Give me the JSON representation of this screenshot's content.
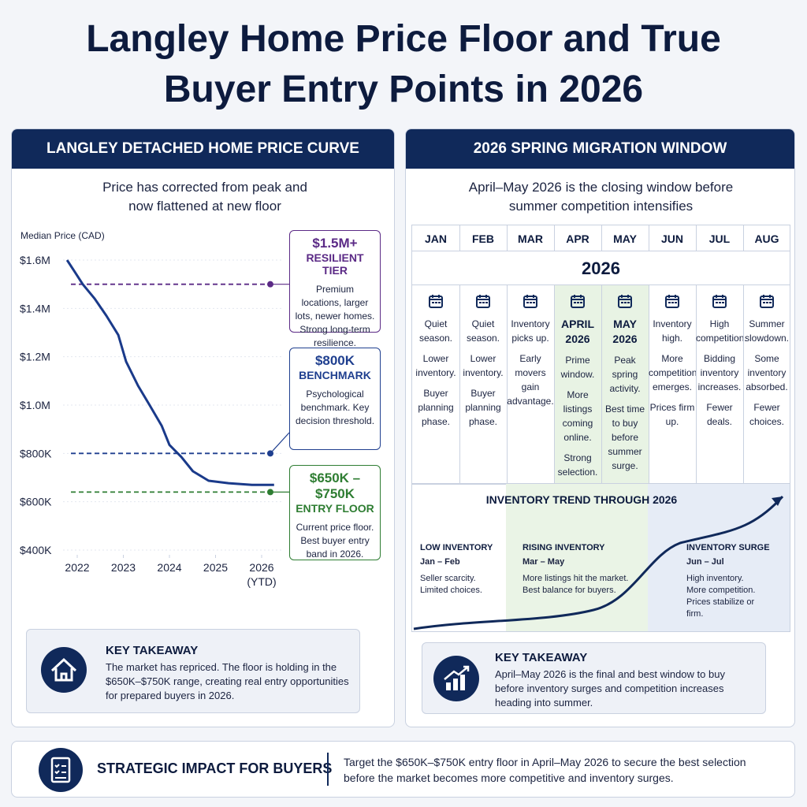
{
  "title": "Langley Home Price Floor and True Buyer Entry Points in 2026",
  "left_panel": {
    "header": "LANGLEY DETACHED HOME PRICE CURVE",
    "subtitle": "Price has corrected from peak and now flattened at new floor",
    "takeaway": {
      "heading": "KEY TAKEAWAY",
      "text": "The market has repriced. The floor is holding in the $650K–$750K range, creating real entry opportunities for prepared buyers in 2026."
    }
  },
  "chart_data": {
    "type": "line",
    "y_label": "Median Price (CAD)",
    "color": "#1a3a8a",
    "grid": true,
    "x": [
      2021.78,
      2021.95,
      2022.12,
      2022.38,
      2022.63,
      2022.89,
      2023.06,
      2023.32,
      2023.57,
      2023.83,
      2024.0,
      2024.26,
      2024.51,
      2024.85,
      2025.28,
      2025.79,
      2026.27
    ],
    "values": [
      1600000,
      1550000,
      1500000,
      1440000,
      1370000,
      1290000,
      1180000,
      1080000,
      1000000,
      915000,
      835000,
      785000,
      726000,
      687000,
      677000,
      670000,
      670000
    ],
    "xlim": [
      2021.6,
      2026.4
    ],
    "xticks": [
      2022,
      2023,
      2024,
      2025,
      {
        "value": 2026,
        "label": "2026 (YTD)"
      }
    ],
    "ylim": [
      400000,
      1600000
    ],
    "yticks": [
      {
        "value": 400000,
        "label": "$400K"
      },
      {
        "value": 600000,
        "label": "$600K"
      },
      {
        "value": 800000,
        "label": "$800K"
      },
      {
        "value": 1000000,
        "label": "$1.0M"
      },
      {
        "value": 1200000,
        "label": "$1.2M"
      },
      {
        "value": 1400000,
        "label": "$1.4M"
      },
      {
        "value": 1600000,
        "label": "$1.6M"
      }
    ],
    "reference_lines": [
      {
        "value": 1500000,
        "color": "#5b2a86",
        "heading": "$1.5M+",
        "subheading": "RESILIENT TIER",
        "text": "Premium locations, larger lots, newer homes. Strong long-term resilience."
      },
      {
        "value": 800000,
        "color": "#1f3f8f",
        "heading": "$800K",
        "subheading": "BENCHMARK",
        "text": "Psychological benchmark. Key decision threshold."
      },
      {
        "value": 640000,
        "color": "#2e7d32",
        "heading": "$650K – $750K",
        "subheading": "ENTRY FLOOR",
        "text": "Current price floor. Best buyer entry band in 2026."
      }
    ]
  },
  "right_panel": {
    "header": "2026 SPRING MIGRATION WINDOW",
    "subtitle": "April–May 2026 is the closing window before summer competition intensifies",
    "year": "2026",
    "months": [
      {
        "month": "JAN",
        "notes": [
          "Quiet season.",
          "Lower inventory.",
          "Buyer planning phase."
        ]
      },
      {
        "month": "FEB",
        "notes": [
          "Quiet season.",
          "Lower inventory.",
          "Buyer planning phase."
        ]
      },
      {
        "month": "MAR",
        "notes": [
          "Inventory picks up.",
          "Early movers gain advantage."
        ]
      },
      {
        "month": "APR",
        "heading": "APRIL 2026",
        "notes": [
          "Prime window.",
          "More listings coming online.",
          "Strong selection."
        ]
      },
      {
        "month": "MAY",
        "heading": "MAY 2026",
        "notes": [
          "Peak spring activity.",
          "Best time to buy before summer surge."
        ]
      },
      {
        "month": "JUN",
        "notes": [
          "Inventory high.",
          "More competition emerges.",
          "Prices firm up."
        ]
      },
      {
        "month": "JUL",
        "notes": [
          "High competition.",
          "Bidding inventory increases.",
          "Fewer deals."
        ]
      },
      {
        "month": "AUG",
        "notes": [
          "Summer slowdown.",
          "Some inventory absorbed.",
          "Fewer choices."
        ]
      }
    ],
    "trend": {
      "title": "INVENTORY TREND THROUGH 2026",
      "phases": [
        {
          "title": "LOW INVENTORY",
          "period": "Jan – Feb",
          "notes": [
            "Seller scarcity.",
            "Limited choices."
          ]
        },
        {
          "title": "RISING INVENTORY",
          "period": "Mar – May",
          "notes": [
            "More listings hit the market.",
            "Best balance for buyers."
          ]
        },
        {
          "title": "INVENTORY SURGE",
          "period": "Jun – Jul",
          "notes": [
            "High inventory.",
            "More competition.",
            "Prices stabilize or firm."
          ]
        }
      ]
    },
    "takeaway": {
      "heading": "KEY TAKEAWAY",
      "text": "April–May 2026 is the final and best window to buy before inventory surges and competition increases heading into summer."
    }
  },
  "strategic": {
    "heading": "STRATEGIC IMPACT FOR BUYERS",
    "text": "Target the $650K–$750K entry floor in April–May 2026 to secure the best selection before the market becomes more competitive and inventory surges."
  }
}
